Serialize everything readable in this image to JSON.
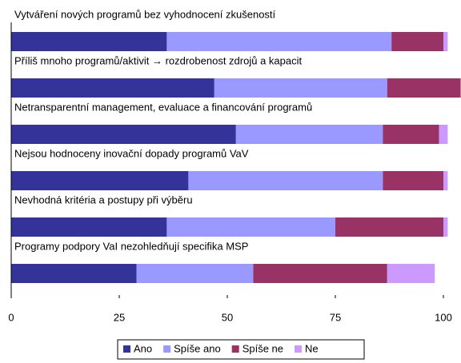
{
  "chart_data": {
    "type": "bar",
    "orientation": "horizontal",
    "stacked": true,
    "categories": [
      "Vytváření nových programů bez vyhodnocení zkušeností",
      "Příliš mnoho programů/aktivit → rozdrobenost zdrojů a kapacit",
      "Netransparentní management, evaluace a financování programů",
      "Nejsou hodnoceny inovační dopady programů VaV",
      "Nevhodná kritéria a postupy při výběru",
      "Programy podpory VaI nezohledňují specifika MSP"
    ],
    "series": [
      {
        "name": "Ano",
        "color": "#333399",
        "values": [
          36,
          47,
          52,
          41,
          36,
          29
        ]
      },
      {
        "name": "Spíše ano",
        "color": "#9999ff",
        "values": [
          52,
          40,
          34,
          45,
          39,
          27
        ]
      },
      {
        "name": "Spíše ne",
        "color": "#993366",
        "values": [
          12,
          17,
          13,
          14,
          25,
          31
        ]
      },
      {
        "name": "Ne",
        "color": "#cc99ff",
        "values": [
          1,
          0,
          2,
          1,
          1,
          11
        ]
      }
    ],
    "xlim": [
      0,
      100
    ],
    "xticks": [
      0,
      25,
      50,
      75,
      100
    ],
    "legend": "bottom"
  }
}
